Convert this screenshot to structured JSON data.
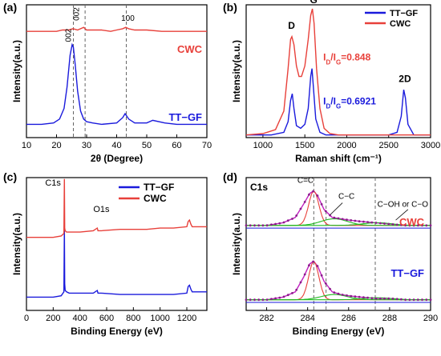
{
  "chart_data": [
    {
      "panel": "(a)",
      "type": "line",
      "xlabel": "2θ (Degree)",
      "ylabel": "Intensity(a.u.)",
      "xlim": [
        10,
        70
      ],
      "xticks": [
        10,
        20,
        30,
        40,
        50,
        60,
        70
      ],
      "series": [
        {
          "name": "CWC",
          "color": "#e8403a",
          "x": [
            10,
            15,
            20,
            22,
            24,
            25.5,
            27,
            29,
            30,
            32,
            35,
            38,
            40,
            42,
            43,
            44,
            46,
            50,
            55,
            60,
            65,
            70
          ],
          "y": [
            0.8,
            0.8,
            0.8,
            0.81,
            0.81,
            0.82,
            0.81,
            0.83,
            0.81,
            0.81,
            0.81,
            0.8,
            0.81,
            0.82,
            0.83,
            0.82,
            0.81,
            0.81,
            0.8,
            0.8,
            0.8,
            0.8
          ]
        },
        {
          "name": "TT−GF",
          "color": "#1a1adc",
          "x": [
            10,
            15,
            19,
            21,
            22.5,
            23.5,
            24.5,
            25.2,
            25.6,
            26.2,
            27,
            28,
            29,
            30,
            32,
            35,
            40,
            42,
            42.8,
            44,
            46,
            50,
            52,
            56,
            60,
            65,
            70
          ],
          "y": [
            0.1,
            0.1,
            0.11,
            0.14,
            0.22,
            0.38,
            0.62,
            0.7,
            0.68,
            0.55,
            0.35,
            0.2,
            0.14,
            0.12,
            0.11,
            0.1,
            0.11,
            0.15,
            0.18,
            0.14,
            0.11,
            0.11,
            0.13,
            0.11,
            0.1,
            0.1,
            0.1
          ]
        }
      ],
      "vlines": [
        25.6,
        29.5,
        43.2
      ],
      "annotations": {
        "peak_002_gf": "002",
        "peak_002_cwc": "002",
        "peak_100": "100"
      }
    },
    {
      "panel": "(b)",
      "type": "line",
      "xlabel": "Raman shift (cm⁻¹)",
      "ylabel": "Intensity(a.u.)",
      "xlim": [
        800,
        3000
      ],
      "xticks": [
        1000,
        1500,
        2000,
        2500,
        3000
      ],
      "series": [
        {
          "name": "TT−GF",
          "color": "#1a1adc",
          "x": [
            800,
            1100,
            1250,
            1300,
            1330,
            1350,
            1370,
            1400,
            1450,
            1500,
            1540,
            1570,
            1585,
            1600,
            1630,
            1680,
            1750,
            2000,
            2500,
            2600,
            2650,
            2680,
            2700,
            2730,
            2800,
            3000
          ],
          "y": [
            0.02,
            0.02,
            0.04,
            0.12,
            0.28,
            0.33,
            0.22,
            0.09,
            0.07,
            0.1,
            0.22,
            0.46,
            0.52,
            0.4,
            0.14,
            0.04,
            0.02,
            0.02,
            0.02,
            0.04,
            0.16,
            0.36,
            0.3,
            0.1,
            0.02,
            0.02
          ]
        },
        {
          "name": "CWC",
          "color": "#e8403a",
          "x": [
            800,
            1000,
            1150,
            1250,
            1300,
            1330,
            1345,
            1370,
            1400,
            1430,
            1460,
            1500,
            1540,
            1570,
            1590,
            1610,
            1640,
            1680,
            1730,
            1800,
            1900,
            2000,
            2500,
            3000
          ],
          "y": [
            0.02,
            0.03,
            0.06,
            0.2,
            0.52,
            0.74,
            0.76,
            0.7,
            0.54,
            0.46,
            0.46,
            0.54,
            0.74,
            0.92,
            0.97,
            0.86,
            0.52,
            0.22,
            0.07,
            0.03,
            0.02,
            0.02,
            0.02,
            0.02
          ]
        }
      ],
      "annotations": {
        "D": "D",
        "G": "G",
        "2D": "2D",
        "ratio_cwc": "=0.848",
        "ratio_gf": "=0.6921"
      },
      "legend": "top-right"
    },
    {
      "panel": "(c)",
      "type": "line",
      "xlabel": "Binding Energy (eV)",
      "ylabel": "Intensity(a.u.)",
      "xlim": [
        0,
        1350
      ],
      "xticks": [
        0,
        200,
        400,
        600,
        800,
        1000,
        1200
      ],
      "series": [
        {
          "name": "TT−GF",
          "color": "#1a1adc",
          "x": [
            0,
            100,
            200,
            260,
            280,
            284,
            286,
            290,
            300,
            320,
            400,
            500,
            530,
            535,
            540,
            560,
            700,
            900,
            1000,
            1100,
            1200,
            1210,
            1220,
            1230,
            1240,
            1350
          ],
          "y": [
            0.1,
            0.1,
            0.1,
            0.11,
            0.14,
            0.62,
            0.2,
            0.15,
            0.14,
            0.13,
            0.13,
            0.13,
            0.15,
            0.13,
            0.13,
            0.13,
            0.12,
            0.12,
            0.12,
            0.12,
            0.13,
            0.18,
            0.19,
            0.16,
            0.14,
            0.14
          ]
        },
        {
          "name": "CWC",
          "color": "#e8403a",
          "x": [
            0,
            100,
            200,
            260,
            280,
            284,
            286,
            290,
            300,
            320,
            400,
            500,
            530,
            535,
            540,
            560,
            700,
            900,
            1000,
            1100,
            1200,
            1210,
            1220,
            1230,
            1240,
            1350
          ],
          "y": [
            0.55,
            0.55,
            0.55,
            0.56,
            0.58,
            0.99,
            0.62,
            0.6,
            0.59,
            0.59,
            0.59,
            0.6,
            0.62,
            0.6,
            0.6,
            0.6,
            0.61,
            0.61,
            0.62,
            0.62,
            0.63,
            0.67,
            0.68,
            0.65,
            0.63,
            0.63
          ]
        }
      ],
      "annotations": {
        "C1s": "C1s",
        "O1s": "O1s"
      },
      "legend": "top-right"
    },
    {
      "panel": "(d)",
      "type": "line",
      "xlabel": "Binding Energy (eV)",
      "ylabel": "Intensity(a.u.)",
      "xlim": [
        281,
        290
      ],
      "xticks": [
        282,
        284,
        286,
        288,
        290
      ],
      "vlines": [
        284.3,
        284.9,
        287.3
      ],
      "title": "C1s",
      "labels": {
        "cwc": "CWC",
        "gf": "TT−GF",
        "cc1": "C=C",
        "cc2": "C−C",
        "coh": "C−OH or C−O"
      },
      "series": [
        {
          "name": "CWC envelope",
          "color": "#c020c0",
          "x": [
            281,
            282,
            282.8,
            283.4,
            283.8,
            284.1,
            284.3,
            284.5,
            284.8,
            285.2,
            285.6,
            286,
            286.6,
            287.3,
            288,
            288.8,
            290
          ],
          "y": [
            0.64,
            0.64,
            0.66,
            0.7,
            0.8,
            0.88,
            0.9,
            0.86,
            0.76,
            0.7,
            0.69,
            0.68,
            0.67,
            0.66,
            0.65,
            0.64,
            0.64
          ]
        },
        {
          "name": "TT−GF envelope",
          "color": "#c020c0",
          "x": [
            281,
            282,
            282.8,
            283.4,
            283.8,
            284.1,
            284.3,
            284.5,
            284.8,
            285.2,
            285.6,
            286,
            286.6,
            287.3,
            288,
            288.8,
            290
          ],
          "y": [
            0.08,
            0.08,
            0.1,
            0.14,
            0.25,
            0.35,
            0.37,
            0.33,
            0.22,
            0.14,
            0.12,
            0.11,
            0.1,
            0.09,
            0.09,
            0.08,
            0.08
          ]
        }
      ]
    }
  ]
}
